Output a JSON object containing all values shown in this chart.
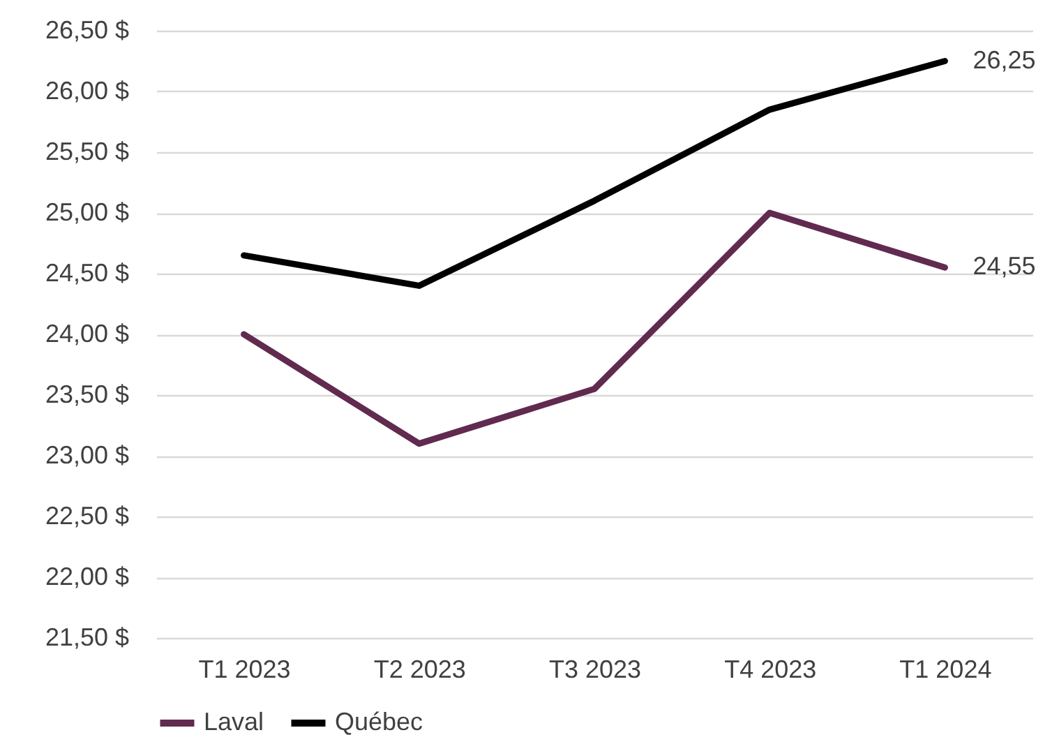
{
  "chart_data": {
    "type": "line",
    "categories": [
      "T1 2023",
      "T2 2023",
      "T3 2023",
      "T4 2023",
      "T1 2024"
    ],
    "series": [
      {
        "name": "Laval",
        "color": "#612a4f",
        "values": [
          24.0,
          23.1,
          23.55,
          25.0,
          24.55
        ],
        "value_labels": [
          null,
          null,
          null,
          null,
          "24,55"
        ]
      },
      {
        "name": "Québec",
        "color": "#000000",
        "values": [
          24.65,
          24.4,
          25.1,
          25.85,
          26.25
        ],
        "value_labels": [
          null,
          null,
          null,
          null,
          "26,25"
        ]
      }
    ],
    "ylim": [
      21.5,
      26.5
    ],
    "yticks": [
      {
        "value": 21.5,
        "label": "21,50 $"
      },
      {
        "value": 22,
        "label": "22,00 $"
      },
      {
        "value": 22.5,
        "label": "22,50 $"
      },
      {
        "value": 23,
        "label": "23,00 $"
      },
      {
        "value": 23.5,
        "label": "23,50 $"
      },
      {
        "value": 24,
        "label": "24,00 $"
      },
      {
        "value": 24.5,
        "label": "24,50 $"
      },
      {
        "value": 25,
        "label": "25,00 $"
      },
      {
        "value": 25.5,
        "label": "25,50 $"
      },
      {
        "value": 26,
        "label": "26,00 $"
      },
      {
        "value": 26.5,
        "label": "26,50 $"
      }
    ],
    "grid": "y",
    "legend": "bottom"
  }
}
